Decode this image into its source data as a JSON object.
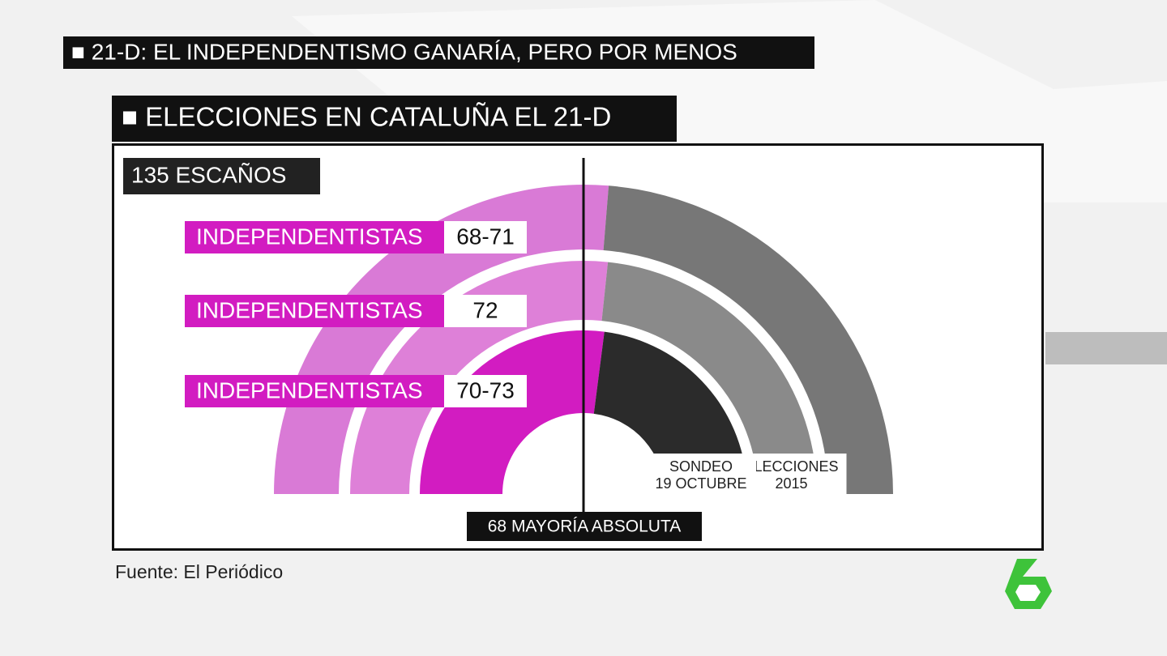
{
  "header": "■ 21-D: EL INDEPENDENTISMO GANARÍA, PERO POR MENOS",
  "chart_data": {
    "type": "semicircle",
    "title": "■ ELECCIONES EN CATALUÑA EL 21-D",
    "total": {
      "value": 135,
      "label": "135 ESCAÑOS"
    },
    "majority": {
      "value": 68,
      "label": "68 MAYORÍA ABSOLUTA"
    },
    "rings": [
      {
        "name": "INDEPENDENTISTAS",
        "values": [
          68,
          71
        ],
        "value_label": "68-71",
        "color": "#d97ad6",
        "rest_color": "#777777"
      },
      {
        "name": "INDEPENDENTISTAS",
        "values": [
          72
        ],
        "value_label": "72",
        "color": "#de80d8",
        "rest_color": "#8a8a8a",
        "note": [
          "ELECCIONES",
          "2015"
        ]
      },
      {
        "name": "INDEPENDENTISTAS",
        "values": [
          70,
          73
        ],
        "value_label": "70-73",
        "color": "#d21cc1",
        "rest_color": "#2b2b2b",
        "note": [
          "SONDEO",
          "19 OCTUBRE"
        ]
      }
    ],
    "source": "Fuente: El Periódico"
  }
}
